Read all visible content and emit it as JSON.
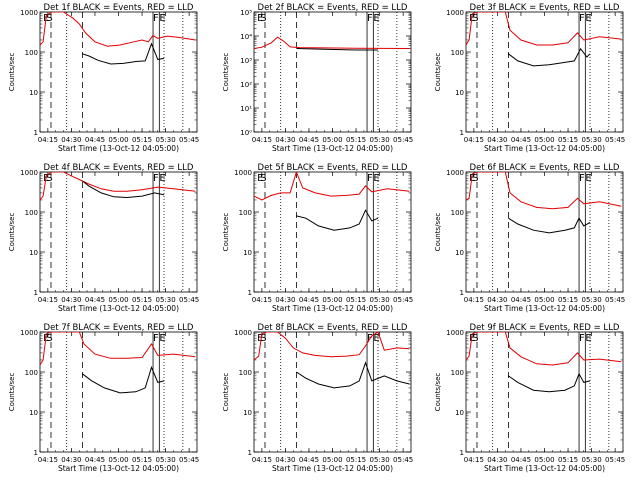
{
  "chart_data": [
    {
      "type": "line",
      "title": "Det 1f BLACK = Events, RED = LLD",
      "xlabel": "Start Time (13-Oct-12 04:05:00)",
      "ylabel": "Counts/sec",
      "scale_y": "log",
      "ylim": [
        1,
        1000
      ],
      "y_ticks": [
        "1",
        "10",
        "100",
        "1000"
      ],
      "x_ticks": [
        "04:15",
        "04:30",
        "04:45",
        "05:00",
        "05:15",
        "05:30",
        "05:45"
      ],
      "xlim_minutes": [
        5,
        105
      ],
      "markers": [
        {
          "label": "E",
          "t": 7
        },
        {
          "label": "S",
          "t": 9
        },
        {
          "label": "F",
          "t": 77
        },
        {
          "label": "E",
          "t": 81
        }
      ],
      "dashed_lines": [
        12,
        32
      ],
      "dotted_lines": [
        22,
        84,
        96
      ],
      "solid_lines": [
        77,
        81
      ],
      "red_points": [
        [
          5,
          150
        ],
        [
          7,
          180
        ],
        [
          9,
          800
        ],
        [
          12,
          1100
        ],
        [
          20,
          1100
        ],
        [
          26,
          700
        ],
        [
          30,
          500
        ],
        [
          34,
          300
        ],
        [
          40,
          180
        ],
        [
          48,
          140
        ],
        [
          56,
          150
        ],
        [
          62,
          170
        ],
        [
          70,
          200
        ],
        [
          74,
          180
        ],
        [
          77,
          260
        ],
        [
          80,
          220
        ],
        [
          86,
          250
        ],
        [
          94,
          230
        ],
        [
          104,
          200
        ]
      ],
      "black_points": [
        [
          32,
          90
        ],
        [
          36,
          80
        ],
        [
          42,
          62
        ],
        [
          50,
          50
        ],
        [
          58,
          52
        ],
        [
          66,
          58
        ],
        [
          72,
          60
        ],
        [
          76,
          160
        ],
        [
          80,
          65
        ],
        [
          84,
          70
        ]
      ]
    },
    {
      "type": "line",
      "title": "Det 2f BLACK = Events, RED = LLD",
      "xlabel": "Start Time (13-Oct-12 04:05:00)",
      "ylabel": "Counts/sec",
      "scale_y": "log",
      "ylim": [
        1,
        100000
      ],
      "y_ticks": [
        "10⁰",
        "10¹",
        "10²",
        "10³",
        "10⁴",
        "10⁵"
      ],
      "x_ticks": [
        "04:15",
        "04:30",
        "04:45",
        "05:00",
        "05:15",
        "05:30",
        "05:45"
      ],
      "xlim_minutes": [
        5,
        105
      ],
      "markers": [
        {
          "label": "E",
          "t": 7
        },
        {
          "label": "S",
          "t": 9
        },
        {
          "label": "F",
          "t": 77
        },
        {
          "label": "E",
          "t": 81
        }
      ],
      "dashed_lines": [
        12,
        32
      ],
      "dotted_lines": [
        22,
        84,
        96
      ],
      "solid_lines": [
        77,
        81
      ],
      "red_points": [
        [
          5,
          3000
        ],
        [
          10,
          3400
        ],
        [
          16,
          5200
        ],
        [
          20,
          9000
        ],
        [
          24,
          6000
        ],
        [
          28,
          3500
        ],
        [
          34,
          3300
        ],
        [
          50,
          3200
        ],
        [
          70,
          3100
        ],
        [
          104,
          3000
        ]
      ],
      "black_points": [
        [
          32,
          3000
        ],
        [
          50,
          2800
        ],
        [
          70,
          2600
        ],
        [
          84,
          2600
        ]
      ]
    },
    {
      "type": "line",
      "title": "Det 3f BLACK = Events, RED = LLD",
      "xlabel": "Start Time (13-Oct-12 04:05:00)",
      "ylabel": "Counts/sec",
      "scale_y": "log",
      "ylim": [
        1,
        1000
      ],
      "y_ticks": [
        "1",
        "10",
        "100",
        "1000"
      ],
      "x_ticks": [
        "04:15",
        "04:30",
        "04:45",
        "05:00",
        "05:15",
        "05:30",
        "05:45"
      ],
      "xlim_minutes": [
        5,
        105
      ],
      "markers": [
        {
          "label": "E",
          "t": 7
        },
        {
          "label": "S",
          "t": 9
        },
        {
          "label": "F",
          "t": 77
        },
        {
          "label": "E",
          "t": 81
        }
      ],
      "dashed_lines": [
        12,
        32
      ],
      "dotted_lines": [
        22,
        84,
        96
      ],
      "solid_lines": [
        77,
        81
      ],
      "red_points": [
        [
          5,
          150
        ],
        [
          7,
          200
        ],
        [
          9,
          900
        ],
        [
          12,
          1100
        ],
        [
          30,
          1100
        ],
        [
          33,
          350
        ],
        [
          40,
          200
        ],
        [
          50,
          150
        ],
        [
          60,
          150
        ],
        [
          70,
          170
        ],
        [
          76,
          300
        ],
        [
          80,
          200
        ],
        [
          90,
          240
        ],
        [
          104,
          210
        ]
      ],
      "black_points": [
        [
          32,
          90
        ],
        [
          38,
          60
        ],
        [
          48,
          45
        ],
        [
          58,
          48
        ],
        [
          68,
          55
        ],
        [
          74,
          60
        ],
        [
          78,
          120
        ],
        [
          82,
          75
        ],
        [
          84,
          90
        ]
      ]
    },
    {
      "type": "line",
      "title": "Det 4f BLACK = Events, RED = LLD",
      "xlabel": "Start Time (13-Oct-12 04:05:00)",
      "ylabel": "Counts/sec",
      "scale_y": "log",
      "ylim": [
        1,
        1000
      ],
      "y_ticks": [
        "1",
        "10",
        "100",
        "1000"
      ],
      "x_ticks": [
        "04:15",
        "04:30",
        "04:45",
        "05:00",
        "05:15",
        "05:30",
        "05:45"
      ],
      "xlim_minutes": [
        5,
        105
      ],
      "markers": [
        {
          "label": "E",
          "t": 7
        },
        {
          "label": "S",
          "t": 9
        },
        {
          "label": "F",
          "t": 77
        },
        {
          "label": "E",
          "t": 81
        }
      ],
      "dashed_lines": [
        12,
        32
      ],
      "dotted_lines": [
        22,
        84,
        96
      ],
      "solid_lines": [
        77,
        81
      ],
      "red_points": [
        [
          5,
          200
        ],
        [
          7,
          250
        ],
        [
          9,
          800
        ],
        [
          12,
          1100
        ],
        [
          20,
          1100
        ],
        [
          25,
          800
        ],
        [
          30,
          650
        ],
        [
          36,
          500
        ],
        [
          44,
          380
        ],
        [
          52,
          330
        ],
        [
          60,
          330
        ],
        [
          70,
          360
        ],
        [
          80,
          420
        ],
        [
          90,
          380
        ],
        [
          104,
          330
        ]
      ],
      "black_points": [
        [
          32,
          600
        ],
        [
          36,
          450
        ],
        [
          44,
          300
        ],
        [
          52,
          240
        ],
        [
          60,
          230
        ],
        [
          70,
          250
        ],
        [
          78,
          300
        ],
        [
          84,
          270
        ]
      ]
    },
    {
      "type": "line",
      "title": "Det 5f BLACK = Events, RED = LLD",
      "xlabel": "Start Time (13-Oct-12 04:05:00)",
      "ylabel": "Counts/sec",
      "scale_y": "log",
      "ylim": [
        1,
        1000
      ],
      "y_ticks": [
        "1",
        "10",
        "100",
        "1000"
      ],
      "x_ticks": [
        "04:15",
        "04:30",
        "04:45",
        "05:00",
        "05:15",
        "05:30",
        "05:45"
      ],
      "xlim_minutes": [
        5,
        105
      ],
      "markers": [
        {
          "label": "E",
          "t": 7
        },
        {
          "label": "S",
          "t": 9
        },
        {
          "label": "F",
          "t": 77
        },
        {
          "label": "E",
          "t": 81
        }
      ],
      "dashed_lines": [
        12,
        32
      ],
      "dotted_lines": [
        22,
        84,
        96
      ],
      "solid_lines": [
        77,
        81
      ],
      "red_points": [
        [
          5,
          250
        ],
        [
          10,
          200
        ],
        [
          16,
          260
        ],
        [
          22,
          300
        ],
        [
          28,
          300
        ],
        [
          32,
          1000
        ],
        [
          36,
          400
        ],
        [
          44,
          300
        ],
        [
          54,
          250
        ],
        [
          64,
          260
        ],
        [
          72,
          280
        ],
        [
          76,
          450
        ],
        [
          80,
          320
        ],
        [
          90,
          380
        ],
        [
          104,
          330
        ]
      ],
      "black_points": [
        [
          32,
          80
        ],
        [
          38,
          70
        ],
        [
          46,
          45
        ],
        [
          56,
          35
        ],
        [
          66,
          40
        ],
        [
          72,
          50
        ],
        [
          76,
          110
        ],
        [
          80,
          60
        ],
        [
          84,
          70
        ]
      ]
    },
    {
      "type": "line",
      "title": "Det 6f BLACK = Events, RED = LLD",
      "xlabel": "Start Time (13-Oct-12 04:05:00)",
      "ylabel": "Counts/sec",
      "scale_y": "log",
      "ylim": [
        1,
        1000
      ],
      "y_ticks": [
        "1",
        "10",
        "100",
        "1000"
      ],
      "x_ticks": [
        "04:15",
        "04:30",
        "04:45",
        "05:00",
        "05:15",
        "05:30",
        "05:45"
      ],
      "xlim_minutes": [
        5,
        105
      ],
      "markers": [
        {
          "label": "E",
          "t": 7
        },
        {
          "label": "S",
          "t": 9
        },
        {
          "label": "F",
          "t": 77
        },
        {
          "label": "E",
          "t": 81
        }
      ],
      "dashed_lines": [
        12,
        32
      ],
      "dotted_lines": [
        22,
        84,
        96
      ],
      "solid_lines": [
        77,
        81
      ],
      "red_points": [
        [
          5,
          200
        ],
        [
          7,
          220
        ],
        [
          9,
          900
        ],
        [
          12,
          1100
        ],
        [
          30,
          1100
        ],
        [
          33,
          300
        ],
        [
          40,
          180
        ],
        [
          50,
          130
        ],
        [
          60,
          120
        ],
        [
          70,
          130
        ],
        [
          76,
          220
        ],
        [
          80,
          160
        ],
        [
          90,
          180
        ],
        [
          104,
          140
        ]
      ],
      "black_points": [
        [
          32,
          70
        ],
        [
          38,
          50
        ],
        [
          48,
          35
        ],
        [
          58,
          30
        ],
        [
          68,
          35
        ],
        [
          74,
          40
        ],
        [
          77,
          70
        ],
        [
          80,
          45
        ],
        [
          84,
          55
        ]
      ]
    },
    {
      "type": "line",
      "title": "Det 7f BLACK = Events, RED = LLD",
      "xlabel": "Start Time (13-Oct-12 04:05:00)",
      "ylabel": "Counts/sec",
      "scale_y": "log",
      "ylim": [
        1,
        1000
      ],
      "y_ticks": [
        "1",
        "10",
        "100",
        "1000"
      ],
      "x_ticks": [
        "04:15",
        "04:30",
        "04:45",
        "05:00",
        "05:15",
        "05:30",
        "05:45"
      ],
      "xlim_minutes": [
        5,
        105
      ],
      "markers": [
        {
          "label": "E",
          "t": 7
        },
        {
          "label": "S",
          "t": 9
        },
        {
          "label": "F",
          "t": 77
        },
        {
          "label": "E",
          "t": 81
        }
      ],
      "dashed_lines": [
        12,
        32
      ],
      "dotted_lines": [
        22,
        84,
        96
      ],
      "solid_lines": [
        77,
        81
      ],
      "red_points": [
        [
          5,
          150
        ],
        [
          7,
          200
        ],
        [
          9,
          900
        ],
        [
          12,
          1100
        ],
        [
          30,
          1100
        ],
        [
          33,
          500
        ],
        [
          40,
          280
        ],
        [
          50,
          220
        ],
        [
          60,
          220
        ],
        [
          70,
          230
        ],
        [
          76,
          500
        ],
        [
          80,
          260
        ],
        [
          90,
          280
        ],
        [
          104,
          240
        ]
      ],
      "black_points": [
        [
          32,
          90
        ],
        [
          38,
          60
        ],
        [
          46,
          40
        ],
        [
          56,
          30
        ],
        [
          66,
          32
        ],
        [
          72,
          40
        ],
        [
          76,
          130
        ],
        [
          80,
          55
        ],
        [
          84,
          60
        ]
      ]
    },
    {
      "type": "line",
      "title": "Det 8f BLACK = Events, RED = LLD",
      "xlabel": "Start Time (13-Oct-12 04:05:00)",
      "ylabel": "Counts/sec",
      "scale_y": "log",
      "ylim": [
        1,
        1000
      ],
      "y_ticks": [
        "1",
        "10",
        "100",
        "1000"
      ],
      "x_ticks": [
        "04:15",
        "04:30",
        "04:45",
        "05:00",
        "05:15",
        "05:30",
        "05:45"
      ],
      "xlim_minutes": [
        5,
        105
      ],
      "markers": [
        {
          "label": "E",
          "t": 7
        },
        {
          "label": "S",
          "t": 9
        },
        {
          "label": "F",
          "t": 77
        },
        {
          "label": "E",
          "t": 81
        }
      ],
      "dashed_lines": [
        12,
        32
      ],
      "dotted_lines": [
        22,
        84,
        96
      ],
      "solid_lines": [
        77,
        81
      ],
      "red_points": [
        [
          5,
          200
        ],
        [
          8,
          250
        ],
        [
          10,
          900
        ],
        [
          13,
          1100
        ],
        [
          20,
          1100
        ],
        [
          25,
          700
        ],
        [
          30,
          400
        ],
        [
          36,
          300
        ],
        [
          44,
          260
        ],
        [
          54,
          240
        ],
        [
          64,
          250
        ],
        [
          72,
          270
        ],
        [
          76,
          450
        ],
        [
          80,
          800
        ],
        [
          84,
          1100
        ],
        [
          88,
          350
        ],
        [
          96,
          400
        ],
        [
          104,
          380
        ]
      ],
      "black_points": [
        [
          32,
          100
        ],
        [
          38,
          70
        ],
        [
          46,
          50
        ],
        [
          56,
          40
        ],
        [
          66,
          45
        ],
        [
          72,
          60
        ],
        [
          76,
          170
        ],
        [
          80,
          60
        ],
        [
          88,
          80
        ],
        [
          96,
          60
        ],
        [
          104,
          50
        ]
      ]
    },
    {
      "type": "line",
      "title": "Det 9f BLACK = Events, RED = LLD",
      "xlabel": "Start Time (13-Oct-12 04:05:00)",
      "ylabel": "Counts/sec",
      "scale_y": "log",
      "ylim": [
        1,
        1000
      ],
      "y_ticks": [
        "1",
        "10",
        "100",
        "1000"
      ],
      "x_ticks": [
        "04:15",
        "04:30",
        "04:45",
        "05:00",
        "05:15",
        "05:30",
        "05:45"
      ],
      "xlim_minutes": [
        5,
        105
      ],
      "markers": [
        {
          "label": "E",
          "t": 7
        },
        {
          "label": "S",
          "t": 9
        },
        {
          "label": "F",
          "t": 77
        },
        {
          "label": "E",
          "t": 81
        }
      ],
      "dashed_lines": [
        12,
        32
      ],
      "dotted_lines": [
        22,
        84,
        96
      ],
      "solid_lines": [
        77,
        81
      ],
      "red_points": [
        [
          5,
          200
        ],
        [
          7,
          250
        ],
        [
          9,
          900
        ],
        [
          12,
          1100
        ],
        [
          30,
          1100
        ],
        [
          33,
          400
        ],
        [
          40,
          240
        ],
        [
          50,
          160
        ],
        [
          60,
          150
        ],
        [
          70,
          170
        ],
        [
          76,
          300
        ],
        [
          80,
          200
        ],
        [
          90,
          210
        ],
        [
          104,
          180
        ]
      ],
      "black_points": [
        [
          32,
          80
        ],
        [
          38,
          55
        ],
        [
          48,
          35
        ],
        [
          58,
          32
        ],
        [
          68,
          35
        ],
        [
          74,
          45
        ],
        [
          77,
          90
        ],
        [
          80,
          55
        ],
        [
          84,
          60
        ]
      ]
    }
  ]
}
